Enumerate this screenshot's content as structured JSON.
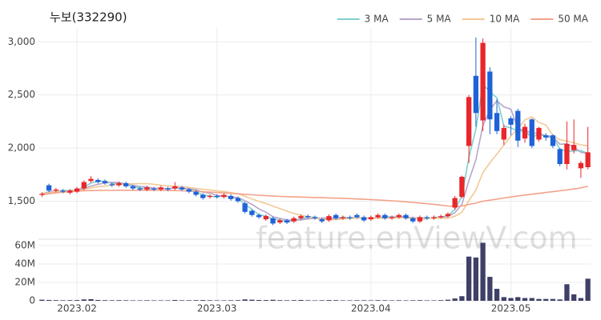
{
  "chart_data": {
    "type": "candlestick",
    "title": "누보(332290)",
    "watermark": "feature.enViewV.com",
    "legend": "top-right",
    "grid": true,
    "up_color": "#e8262b",
    "down_color": "#1f62d8",
    "volume_color": "#3f4068",
    "categories": [
      null,
      null,
      null,
      null,
      null,
      "2023.02",
      null,
      null,
      null,
      null,
      null,
      null,
      null,
      null,
      null,
      null,
      null,
      null,
      null,
      null,
      null,
      null,
      null,
      null,
      null,
      "2023.03",
      null,
      null,
      null,
      null,
      null,
      null,
      null,
      null,
      null,
      null,
      null,
      null,
      null,
      null,
      null,
      null,
      null,
      null,
      null,
      null,
      null,
      "2023.04",
      null,
      null,
      null,
      null,
      null,
      null,
      null,
      null,
      null,
      null,
      null,
      null,
      null,
      null,
      null,
      null,
      null,
      null,
      null,
      "2023.05",
      null,
      null,
      null,
      null,
      null,
      null,
      null,
      null,
      null,
      null,
      null
    ],
    "open": [
      1560,
      1650,
      1600,
      1600,
      1580,
      1590,
      1620,
      1690,
      1700,
      1690,
      1660,
      1650,
      1670,
      1640,
      1620,
      1610,
      1620,
      1610,
      1620,
      1620,
      1630,
      1610,
      1590,
      1560,
      1540,
      1550,
      1540,
      1550,
      1530,
      1480,
      1410,
      1370,
      1330,
      1340,
      1300,
      1320,
      1310,
      1340,
      1360,
      1350,
      1330,
      1320,
      1370,
      1340,
      1350,
      1370,
      1350,
      1330,
      1350,
      1370,
      1340,
      1350,
      1370,
      1340,
      1310,
      1350,
      1340,
      1350,
      1360,
      1440,
      1540,
      2020,
      2680,
      2260,
      2720,
      2330,
      2080,
      2280,
      2350,
      2090,
      2270,
      2080,
      2120,
      2120,
      1990,
      1850,
      1980,
      1810,
      1820
    ],
    "high": [
      1585,
      1665,
      1625,
      1615,
      1615,
      1635,
      1695,
      1735,
      1715,
      1705,
      1675,
      1685,
      1685,
      1655,
      1635,
      1645,
      1635,
      1645,
      1635,
      1680,
      1645,
      1625,
      1605,
      1575,
      1565,
      1565,
      1575,
      1565,
      1545,
      1495,
      1425,
      1385,
      1375,
      1355,
      1335,
      1335,
      1355,
      1375,
      1375,
      1365,
      1345,
      1375,
      1385,
      1365,
      1365,
      1385,
      1365,
      1365,
      1385,
      1385,
      1365,
      1385,
      1385,
      1355,
      1365,
      1365,
      1365,
      1375,
      1395,
      1550,
      1740,
      2500,
      3040,
      3030,
      2760,
      2460,
      2220,
      2300,
      2370,
      2230,
      2280,
      2200,
      2140,
      2130,
      2000,
      2250,
      2270,
      1880,
      2200
    ],
    "low": [
      1540,
      1585,
      1585,
      1575,
      1565,
      1575,
      1605,
      1675,
      1665,
      1655,
      1635,
      1635,
      1625,
      1605,
      1595,
      1595,
      1595,
      1595,
      1595,
      1605,
      1595,
      1575,
      1545,
      1515,
      1525,
      1525,
      1525,
      1505,
      1485,
      1385,
      1355,
      1335,
      1315,
      1275,
      1285,
      1285,
      1295,
      1325,
      1335,
      1325,
      1295,
      1305,
      1325,
      1325,
      1325,
      1335,
      1305,
      1315,
      1335,
      1325,
      1325,
      1335,
      1325,
      1295,
      1295,
      1325,
      1325,
      1335,
      1345,
      1420,
      1530,
      1860,
      2200,
      2160,
      2130,
      2130,
      2030,
      2120,
      2010,
      2050,
      2000,
      2060,
      2070,
      2000,
      1830,
      1800,
      1950,
      1720,
      1800
    ],
    "close": [
      1570,
      1600,
      1610,
      1590,
      1600,
      1620,
      1680,
      1710,
      1680,
      1670,
      1650,
      1670,
      1640,
      1620,
      1610,
      1630,
      1610,
      1630,
      1610,
      1640,
      1610,
      1590,
      1560,
      1530,
      1550,
      1540,
      1560,
      1520,
      1500,
      1400,
      1370,
      1350,
      1360,
      1290,
      1320,
      1300,
      1340,
      1360,
      1350,
      1340,
      1310,
      1360,
      1340,
      1350,
      1340,
      1350,
      1320,
      1350,
      1370,
      1340,
      1350,
      1370,
      1340,
      1310,
      1350,
      1340,
      1350,
      1360,
      1380,
      1530,
      1730,
      2480,
      2330,
      2990,
      2270,
      2160,
      2190,
      2220,
      2070,
      2200,
      2020,
      2190,
      2100,
      2020,
      1850,
      2040,
      2030,
      1860,
      1960
    ],
    "volume": [
      1200000,
      900000,
      700000,
      600000,
      700000,
      800000,
      1500000,
      1800000,
      900000,
      700000,
      600000,
      700000,
      600000,
      500000,
      500000,
      600000,
      500000,
      500000,
      500000,
      900000,
      600000,
      600000,
      700000,
      800000,
      600000,
      500000,
      500000,
      600000,
      700000,
      1500000,
      1200000,
      900000,
      800000,
      1100000,
      700000,
      600000,
      700000,
      900000,
      600000,
      500000,
      600000,
      800000,
      700000,
      500000,
      500000,
      600000,
      600000,
      500000,
      700000,
      600000,
      500000,
      600000,
      500000,
      600000,
      700000,
      500000,
      500000,
      700000,
      1200000,
      2500000,
      5000000,
      48000000,
      47000000,
      63000000,
      26000000,
      13000000,
      4000000,
      3000000,
      4000000,
      3000000,
      3000000,
      2000000,
      2000000,
      2000000,
      1500000,
      18000000,
      7000000,
      3000000,
      24000000
    ],
    "ma": [
      {
        "name": "3 MA",
        "color": "#7fd0cf",
        "values": [
          1570,
          1590,
          1593,
          1600,
          1600,
          1603,
          1633,
          1670,
          1690,
          1687,
          1667,
          1663,
          1653,
          1643,
          1623,
          1620,
          1617,
          1623,
          1617,
          1627,
          1620,
          1613,
          1587,
          1560,
          1547,
          1540,
          1550,
          1540,
          1527,
          1473,
          1423,
          1373,
          1360,
          1333,
          1323,
          1303,
          1320,
          1333,
          1350,
          1350,
          1333,
          1337,
          1337,
          1350,
          1343,
          1347,
          1337,
          1340,
          1347,
          1353,
          1353,
          1353,
          1353,
          1340,
          1333,
          1333,
          1347,
          1350,
          1363,
          1423,
          1547,
          1913,
          2180,
          2600,
          2530,
          2473,
          2207,
          2190,
          2160,
          2163,
          2097,
          2137,
          2103,
          2103,
          1990,
          1970,
          1973,
          1977,
          1950
        ]
      },
      {
        "name": "5 MA",
        "color": "#b8a6c9",
        "values": [
          1570,
          1585,
          1595,
          1595,
          1594,
          1604,
          1620,
          1642,
          1658,
          1672,
          1678,
          1676,
          1662,
          1650,
          1638,
          1634,
          1622,
          1620,
          1618,
          1624,
          1620,
          1616,
          1608,
          1586,
          1576,
          1554,
          1548,
          1540,
          1534,
          1504,
          1470,
          1428,
          1396,
          1354,
          1338,
          1324,
          1322,
          1324,
          1334,
          1338,
          1340,
          1344,
          1340,
          1340,
          1340,
          1348,
          1340,
          1342,
          1346,
          1346,
          1346,
          1356,
          1354,
          1342,
          1344,
          1342,
          1338,
          1350,
          1356,
          1392,
          1470,
          1696,
          1890,
          2212,
          2360,
          2446,
          2388,
          2366,
          2182,
          2168,
          2140,
          2140,
          2116,
          2106,
          2036,
          2040,
          2008,
          1960,
          1948
        ]
      },
      {
        "name": "10 MA",
        "color": "#f3c996",
        "values": [
          1570,
          1580,
          1590,
          1592,
          1594,
          1598,
          1610,
          1625,
          1636,
          1643,
          1651,
          1658,
          1661,
          1664,
          1665,
          1666,
          1659,
          1651,
          1644,
          1641,
          1637,
          1629,
          1621,
          1612,
          1606,
          1597,
          1592,
          1581,
          1570,
          1546,
          1522,
          1498,
          1478,
          1454,
          1431,
          1407,
          1385,
          1369,
          1354,
          1338,
          1329,
          1328,
          1326,
          1332,
          1337,
          1341,
          1339,
          1338,
          1340,
          1340,
          1341,
          1342,
          1342,
          1338,
          1339,
          1338,
          1341,
          1340,
          1340,
          1359,
          1396,
          1507,
          1605,
          1770,
          1862,
          1944,
          2028,
          2114,
          2183,
          2265,
          2294,
          2240,
          2217,
          2120,
          2078,
          2066,
          2050,
          2030,
          2020
        ]
      },
      {
        "name": "50 MA",
        "color": "#f4a28a",
        "values": [
          1560,
          1570,
          1578,
          1585,
          1590,
          1595,
          1598,
          1600,
          1601,
          1602,
          1602,
          1603,
          1603,
          1603,
          1603,
          1603,
          1603,
          1602,
          1601,
          1600,
          1598,
          1596,
          1593,
          1590,
          1586,
          1582,
          1578,
          1574,
          1570,
          1565,
          1560,
          1556,
          1552,
          1548,
          1545,
          1543,
          1541,
          1539,
          1537,
          1535,
          1533,
          1531,
          1529,
          1527,
          1524,
          1521,
          1518,
          1515,
          1512,
          1508,
          1504,
          1499,
          1494,
          1489,
          1483,
          1477,
          1470,
          1463,
          1455,
          1450,
          1455,
          1470,
          1482,
          1500,
          1510,
          1520,
          1530,
          1540,
          1550,
          1558,
          1566,
          1574,
          1582,
          1590,
          1598,
          1606,
          1615,
          1625,
          1640
        ]
      }
    ],
    "ylim": [
      1150,
      3130
    ],
    "yticks": [
      {
        "value": 1500,
        "label": "1,500"
      },
      {
        "value": 2000,
        "label": "2,000"
      },
      {
        "value": 2500,
        "label": "2,500"
      },
      {
        "value": 3000,
        "label": "3,000"
      }
    ],
    "volume_ylim": [
      0,
      66000000
    ],
    "volume_ticks": [
      0,
      {
        "value": 20000000,
        "label": "20M"
      },
      {
        "value": 40000000,
        "label": "40M"
      },
      {
        "value": 60000000,
        "label": "60M"
      }
    ]
  }
}
